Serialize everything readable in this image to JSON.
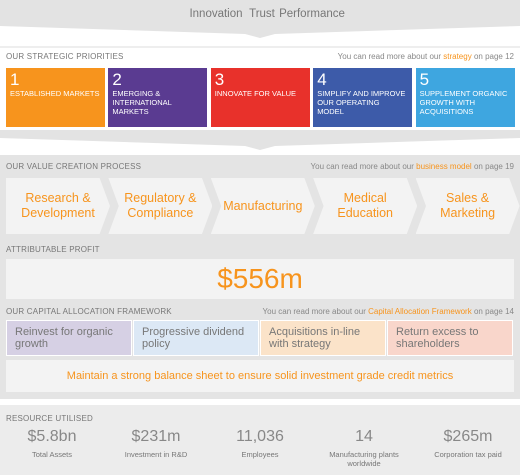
{
  "header": {
    "words": [
      "Innovation",
      "Trust",
      "Performance"
    ]
  },
  "priorities": {
    "title": "OUR STRATEGIC PRIORITIES",
    "note": {
      "before": "You can read more about our",
      "link": "strategy",
      "after": "on page 12"
    },
    "items": [
      {
        "number": "1",
        "label": "ESTABLISHED MARKETS",
        "color": "#f7941d"
      },
      {
        "number": "2",
        "label": "EMERGING & INTERNATIONAL MARKETS",
        "color": "#5a3b91"
      },
      {
        "number": "3",
        "label": "INNOVATE FOR VALUE",
        "color": "#e8312b"
      },
      {
        "number": "4",
        "label": "SIMPLIFY AND IMPROVE OUR OPERATING MODEL",
        "color": "#3d5ba9"
      },
      {
        "number": "5",
        "label": "SUPPLEMENT ORGANIC GROWTH WITH ACQUISITIONS",
        "color": "#3ea6e0"
      }
    ]
  },
  "value_creation": {
    "title": "OUR VALUE CREATION PROCESS",
    "note": {
      "before": "You can read more about our",
      "link": "business model",
      "after": "on page 19"
    },
    "steps": [
      "Research & Development",
      "Regulatory & Compliance",
      "Manufacturing",
      "Medical Education",
      "Sales & Marketing"
    ]
  },
  "profit": {
    "label": "ATTRIBUTABLE PROFIT",
    "value": "$556m"
  },
  "capital_allocation": {
    "title": "OUR CAPITAL ALLOCATION FRAMEWORK",
    "note": {
      "before": "You can read more about our",
      "link": "Capital Allocation Framework",
      "after": "on page 14"
    },
    "items": [
      {
        "label": "Reinvest for organic growth",
        "color": "#d6d0e4"
      },
      {
        "label": "Progressive dividend policy",
        "color": "#dce8f5"
      },
      {
        "label": "Acquisitions in-line with strategy",
        "color": "#fbe3c9"
      },
      {
        "label": "Return excess to shareholders",
        "color": "#f9d6cb"
      }
    ],
    "footer": "Maintain a strong balance sheet to ensure solid investment grade credit metrics"
  },
  "resources": {
    "title": "RESOURCE UTILISED",
    "items": [
      {
        "value": "$5.8bn",
        "label": "Total Assets"
      },
      {
        "value": "$231m",
        "label": "Investment in R&D"
      },
      {
        "value": "11,036",
        "label": "Employees"
      },
      {
        "value": "14",
        "label": "Manufacturing plants worldwide"
      },
      {
        "value": "$265m",
        "label": "Corporation tax paid"
      }
    ]
  }
}
